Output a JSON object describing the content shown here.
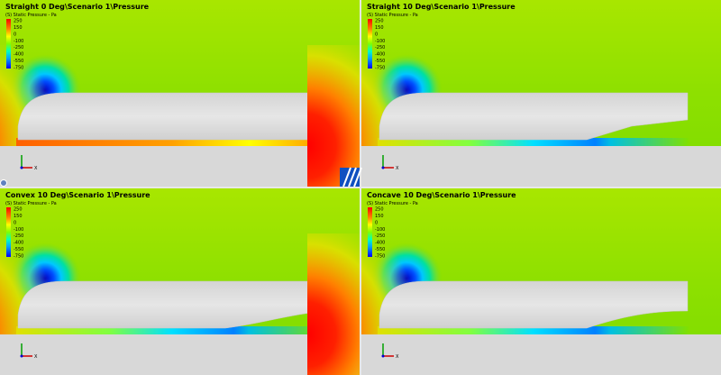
{
  "panels": [
    {
      "title": "Straight 0 Deg\\Scenario 1\\Pressure",
      "legend_title": "(S) Static Pressure - Pa",
      "legend_labels": [
        "250",
        "150",
        "0",
        "-100",
        "-250",
        "-400",
        "-550",
        "-750"
      ],
      "axis_label": "X"
    },
    {
      "title": "Straight 10 Deg\\Scenario 1\\Pressure",
      "legend_title": "(S) Static Pressure - Pa",
      "legend_labels": [
        "250",
        "150",
        "0",
        "-100",
        "-250",
        "-400",
        "-550",
        "-750"
      ],
      "axis_label": "X"
    },
    {
      "title": "Convex 10 Deg\\Scenario 1\\Pressure",
      "legend_title": "(S) Static Pressure - Pa",
      "legend_labels": [
        "250",
        "150",
        "0",
        "-100",
        "-250",
        "-400",
        "-550",
        "-750"
      ],
      "axis_label": "X"
    },
    {
      "title": "Concave 10 Deg\\Scenario 1\\Pressure",
      "legend_title": "(S) Static Pressure - Pa",
      "legend_labels": [
        "250",
        "150",
        "0",
        "-100",
        "-250",
        "-400",
        "-550",
        "-750"
      ],
      "axis_label": "X"
    }
  ]
}
